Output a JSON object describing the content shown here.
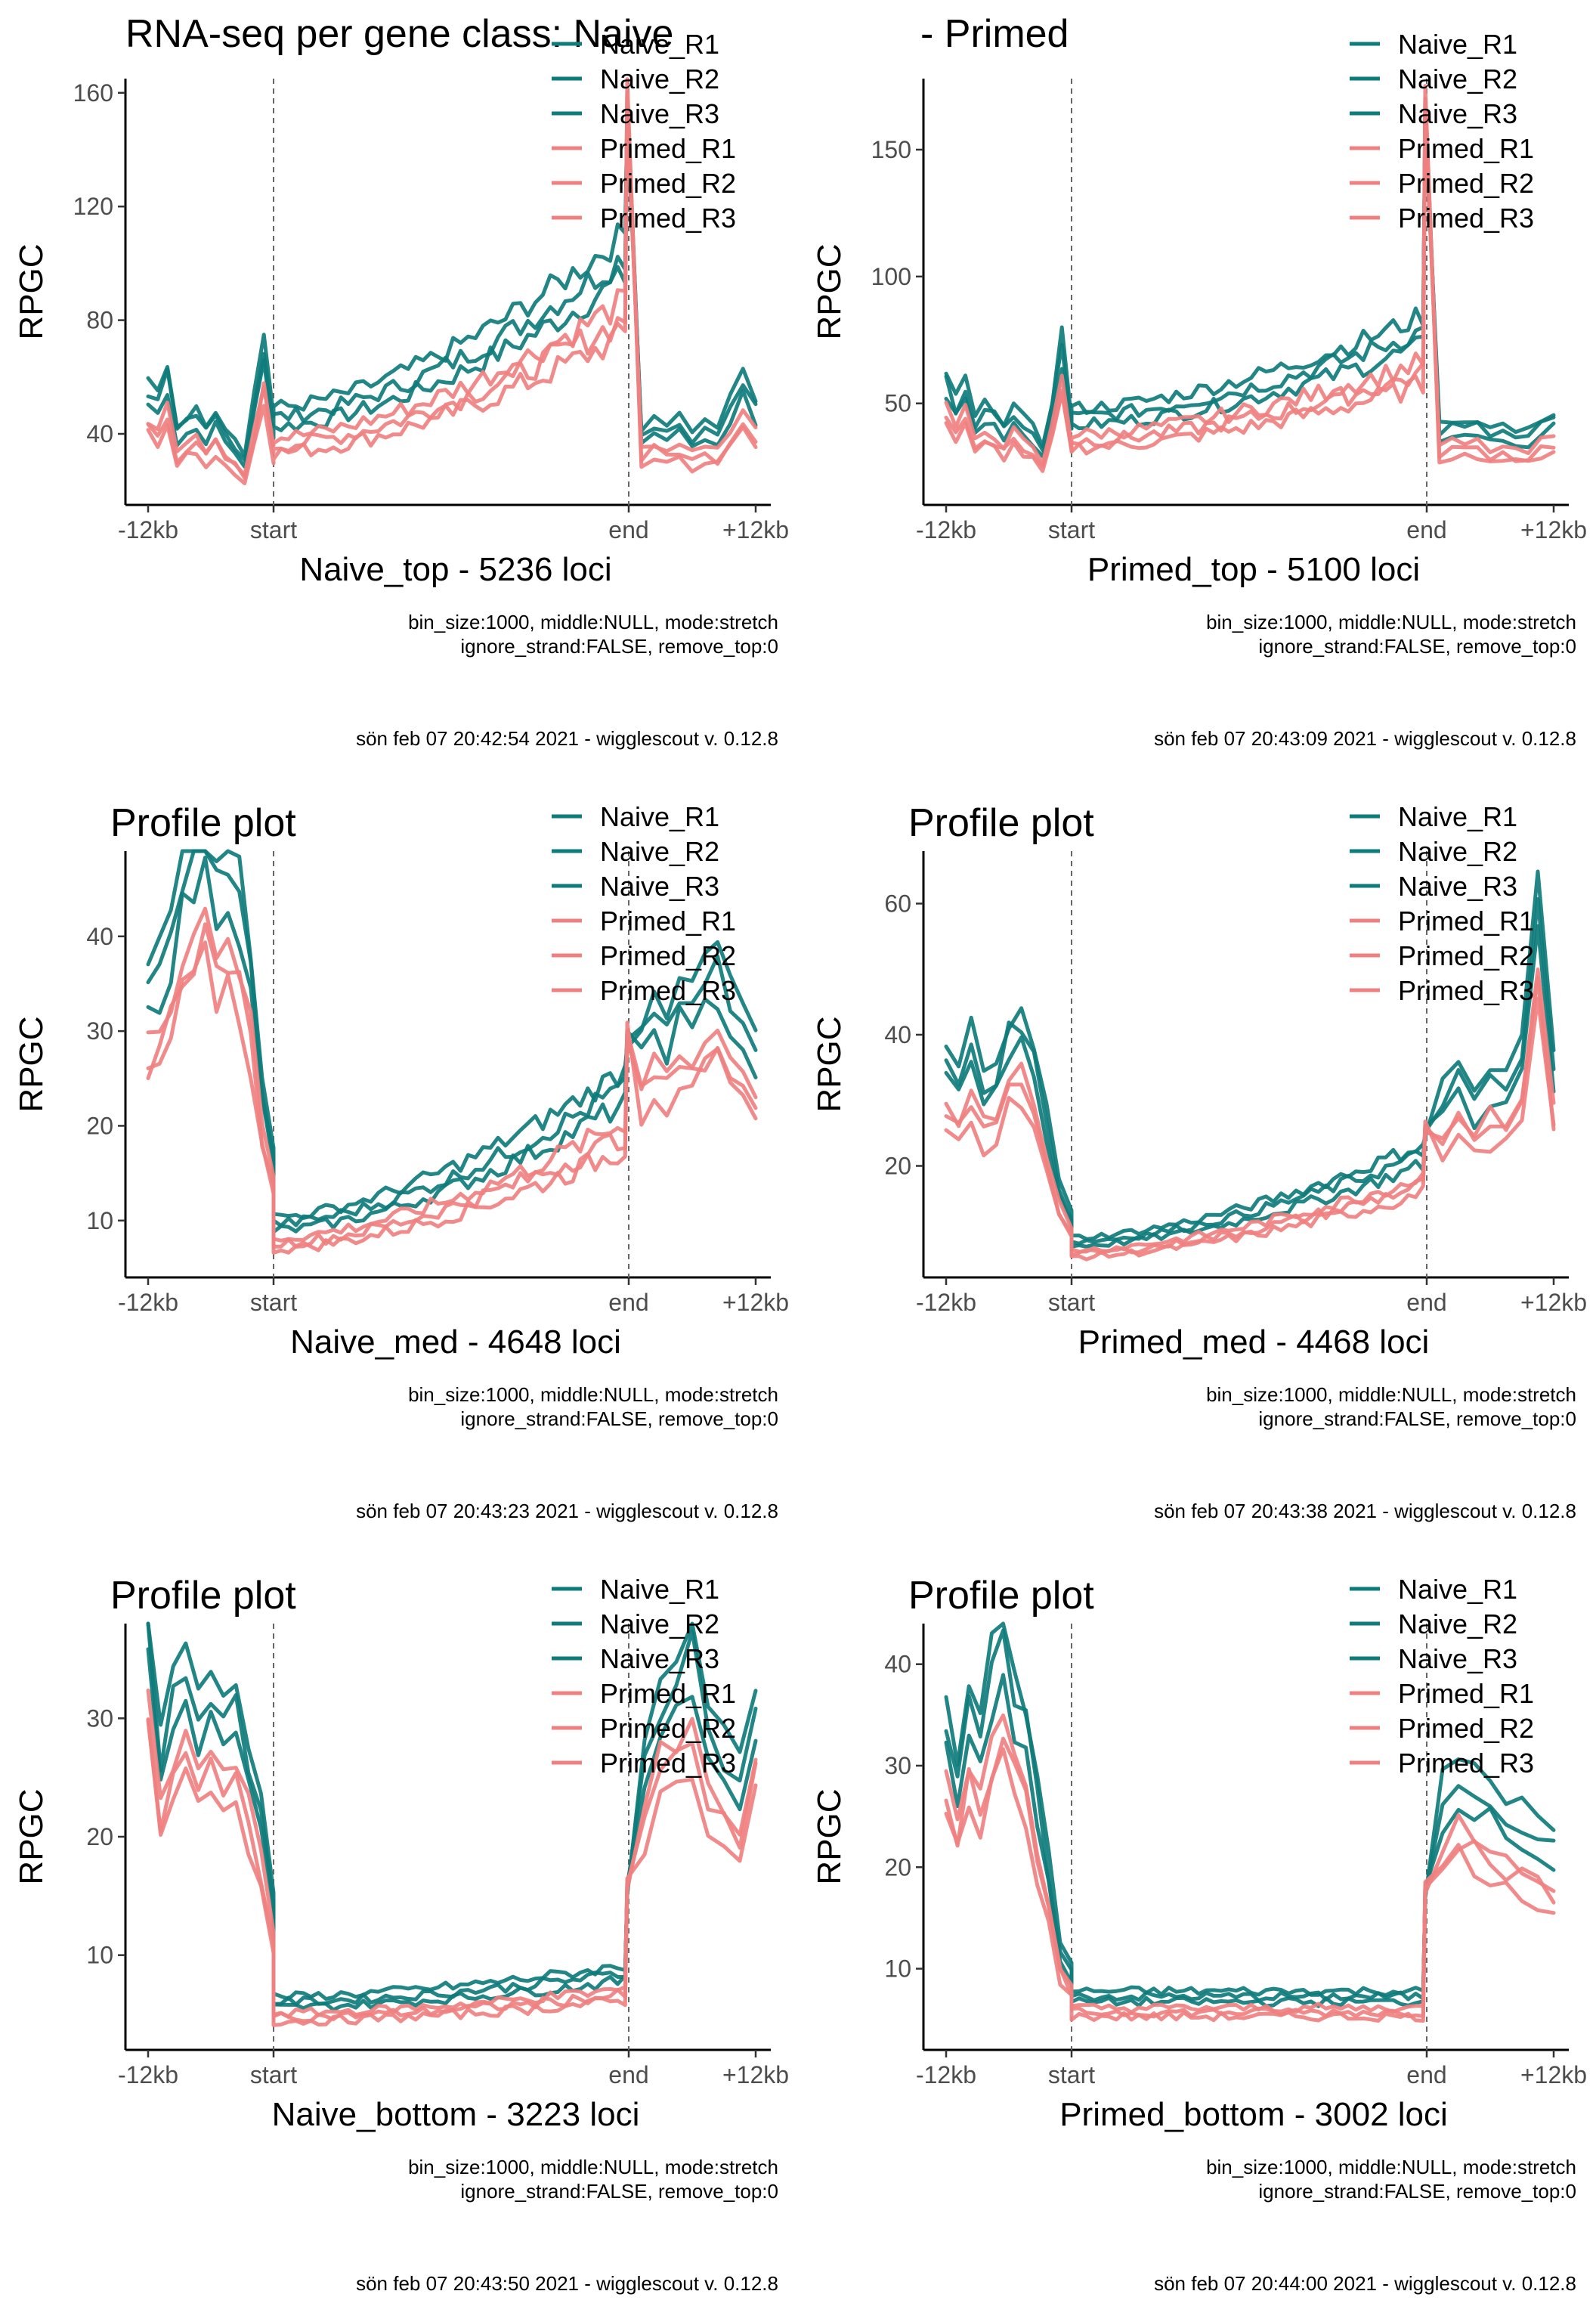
{
  "suptitle": "RNA-seq per gene class: Naive - Primed",
  "colors": {
    "naive": "#0e7c7b",
    "primed": "#f08080"
  },
  "legend": [
    "Naive_R1",
    "Naive_R2",
    "Naive_R3",
    "Primed_R1",
    "Primed_R2",
    "Primed_R3"
  ],
  "chart_data": [
    {
      "type": "line",
      "title": "",
      "xlabel": "Naive_top - 5236 loci",
      "ylabel": "RPGC",
      "ylim": [
        15,
        165
      ],
      "yticks": [
        40,
        80,
        120,
        160
      ],
      "xticks": [
        "-12kb",
        "start",
        "end",
        "+12kb"
      ],
      "settings": "bin_size:1000, middle:NULL, mode:stretch",
      "settings2": "ignore_strand:FALSE, remove_top:0",
      "stamp": "sön feb 07 20:42:54 2021 - wigglescout v. 0.12.8",
      "profile": {
        "up": [
          45,
          42,
          50,
          33,
          36,
          37,
          34,
          38,
          33,
          30,
          26,
          42,
          58,
          36
        ],
        "body_start": 38,
        "body_end": 85,
        "peak": 160,
        "down": [
          33,
          36,
          34,
          36,
          32,
          34,
          33,
          40,
          48,
          40
        ]
      }
    },
    {
      "type": "line",
      "title": "",
      "xlabel": "Primed_top - 5100 loci",
      "ylabel": "RPGC",
      "ylim": [
        10,
        178
      ],
      "yticks": [
        50,
        100,
        150
      ],
      "xticks": [
        "-12kb",
        "start",
        "end",
        "+12kb"
      ],
      "settings": "bin_size:1000, middle:NULL, mode:stretch",
      "settings2": "ignore_strand:FALSE, remove_top:0",
      "stamp": "sön feb 07 20:43:09 2021 - wigglescout v. 0.12.8",
      "profile": {
        "up": [
          48,
          40,
          46,
          34,
          38,
          37,
          33,
          38,
          34,
          31,
          26,
          40,
          60,
          34
        ],
        "body_start": 37,
        "body_end": 65,
        "peak": 170,
        "down": [
          32,
          34,
          33,
          34,
          31,
          32,
          30,
          30,
          34,
          36
        ]
      }
    },
    {
      "type": "line",
      "title": "Profile plot",
      "xlabel": "Naive_med - 4648 loci",
      "ylabel": "RPGC",
      "ylim": [
        4,
        49
      ],
      "yticks": [
        10,
        20,
        30,
        40
      ],
      "xticks": [
        "-12kb",
        "start",
        "end",
        "+12kb"
      ],
      "settings": "bin_size:1000, middle:NULL, mode:stretch",
      "settings2": "ignore_strand:FALSE, remove_top:0",
      "stamp": "sön feb 07 20:43:23 2021 - wigglescout v. 0.12.8",
      "stamp_title": "Profile plot",
      "profile": {
        "up": [
          28,
          30,
          33,
          38,
          40,
          42,
          38,
          40,
          36,
          30,
          20,
          14
        ],
        "body_start": 8,
        "body_end": 20,
        "peak": 30,
        "down": [
          24,
          27,
          25,
          28,
          26,
          29,
          30,
          27,
          25,
          23
        ]
      }
    },
    {
      "type": "line",
      "title": "Profile plot",
      "xlabel": "Primed_med - 4468 loci",
      "ylabel": "RPGC",
      "ylim": [
        3,
        68
      ],
      "yticks": [
        20,
        40,
        60
      ],
      "xticks": [
        "-12kb",
        "start",
        "end",
        "+12kb"
      ],
      "settings": "bin_size:1000, middle:NULL, mode:stretch",
      "settings2": "ignore_strand:FALSE, remove_top:0",
      "stamp": "sön feb 07 20:43:38 2021 - wigglescout v. 0.12.8",
      "profile": {
        "up": [
          29,
          27,
          32,
          26,
          28,
          33,
          35,
          30,
          22,
          14,
          10
        ],
        "body_start": 7,
        "body_end": 18,
        "peak": 26,
        "down": [
          25,
          28,
          24,
          27,
          26,
          30,
          50,
          28
        ]
      }
    },
    {
      "type": "line",
      "title": "Profile plot",
      "xlabel": "Naive_bottom - 3223 loci",
      "ylabel": "RPGC",
      "ylim": [
        2,
        38
      ],
      "yticks": [
        10,
        20,
        30
      ],
      "xticks": [
        "-12kb",
        "start",
        "end",
        "+12kb"
      ],
      "settings": "bin_size:1000, middle:NULL, mode:stretch",
      "settings2": "ignore_strand:FALSE, remove_top:0",
      "stamp": "sön feb 07 20:43:50 2021 - wigglescout v. 0.12.8",
      "profile": {
        "up": [
          32,
          22,
          26,
          28,
          25,
          27,
          24,
          26,
          22,
          18,
          12
        ],
        "body_start": 5,
        "body_end": 7,
        "peak": 16,
        "down": [
          22,
          26,
          28,
          30,
          24,
          22,
          20,
          26
        ]
      }
    },
    {
      "type": "line",
      "title": "Profile plot",
      "xlabel": "Primed_bottom - 3002 loci",
      "ylabel": "RPGC",
      "ylim": [
        2,
        44
      ],
      "yticks": [
        10,
        20,
        30,
        40
      ],
      "xticks": [
        "-12kb",
        "start",
        "end",
        "+12kb"
      ],
      "settings": "bin_size:1000, middle:NULL, mode:stretch",
      "settings2": "ignore_strand:FALSE, remove_top:0",
      "stamp": "sön feb 07 20:44:00 2021 - wigglescout v. 0.12.8",
      "profile": {
        "up": [
          28,
          24,
          30,
          26,
          32,
          35,
          30,
          28,
          22,
          16,
          10,
          8
        ],
        "body_start": 6,
        "body_end": 6,
        "peak": 18,
        "down": [
          22,
          24,
          23,
          22,
          21,
          20,
          19,
          18
        ]
      }
    }
  ]
}
